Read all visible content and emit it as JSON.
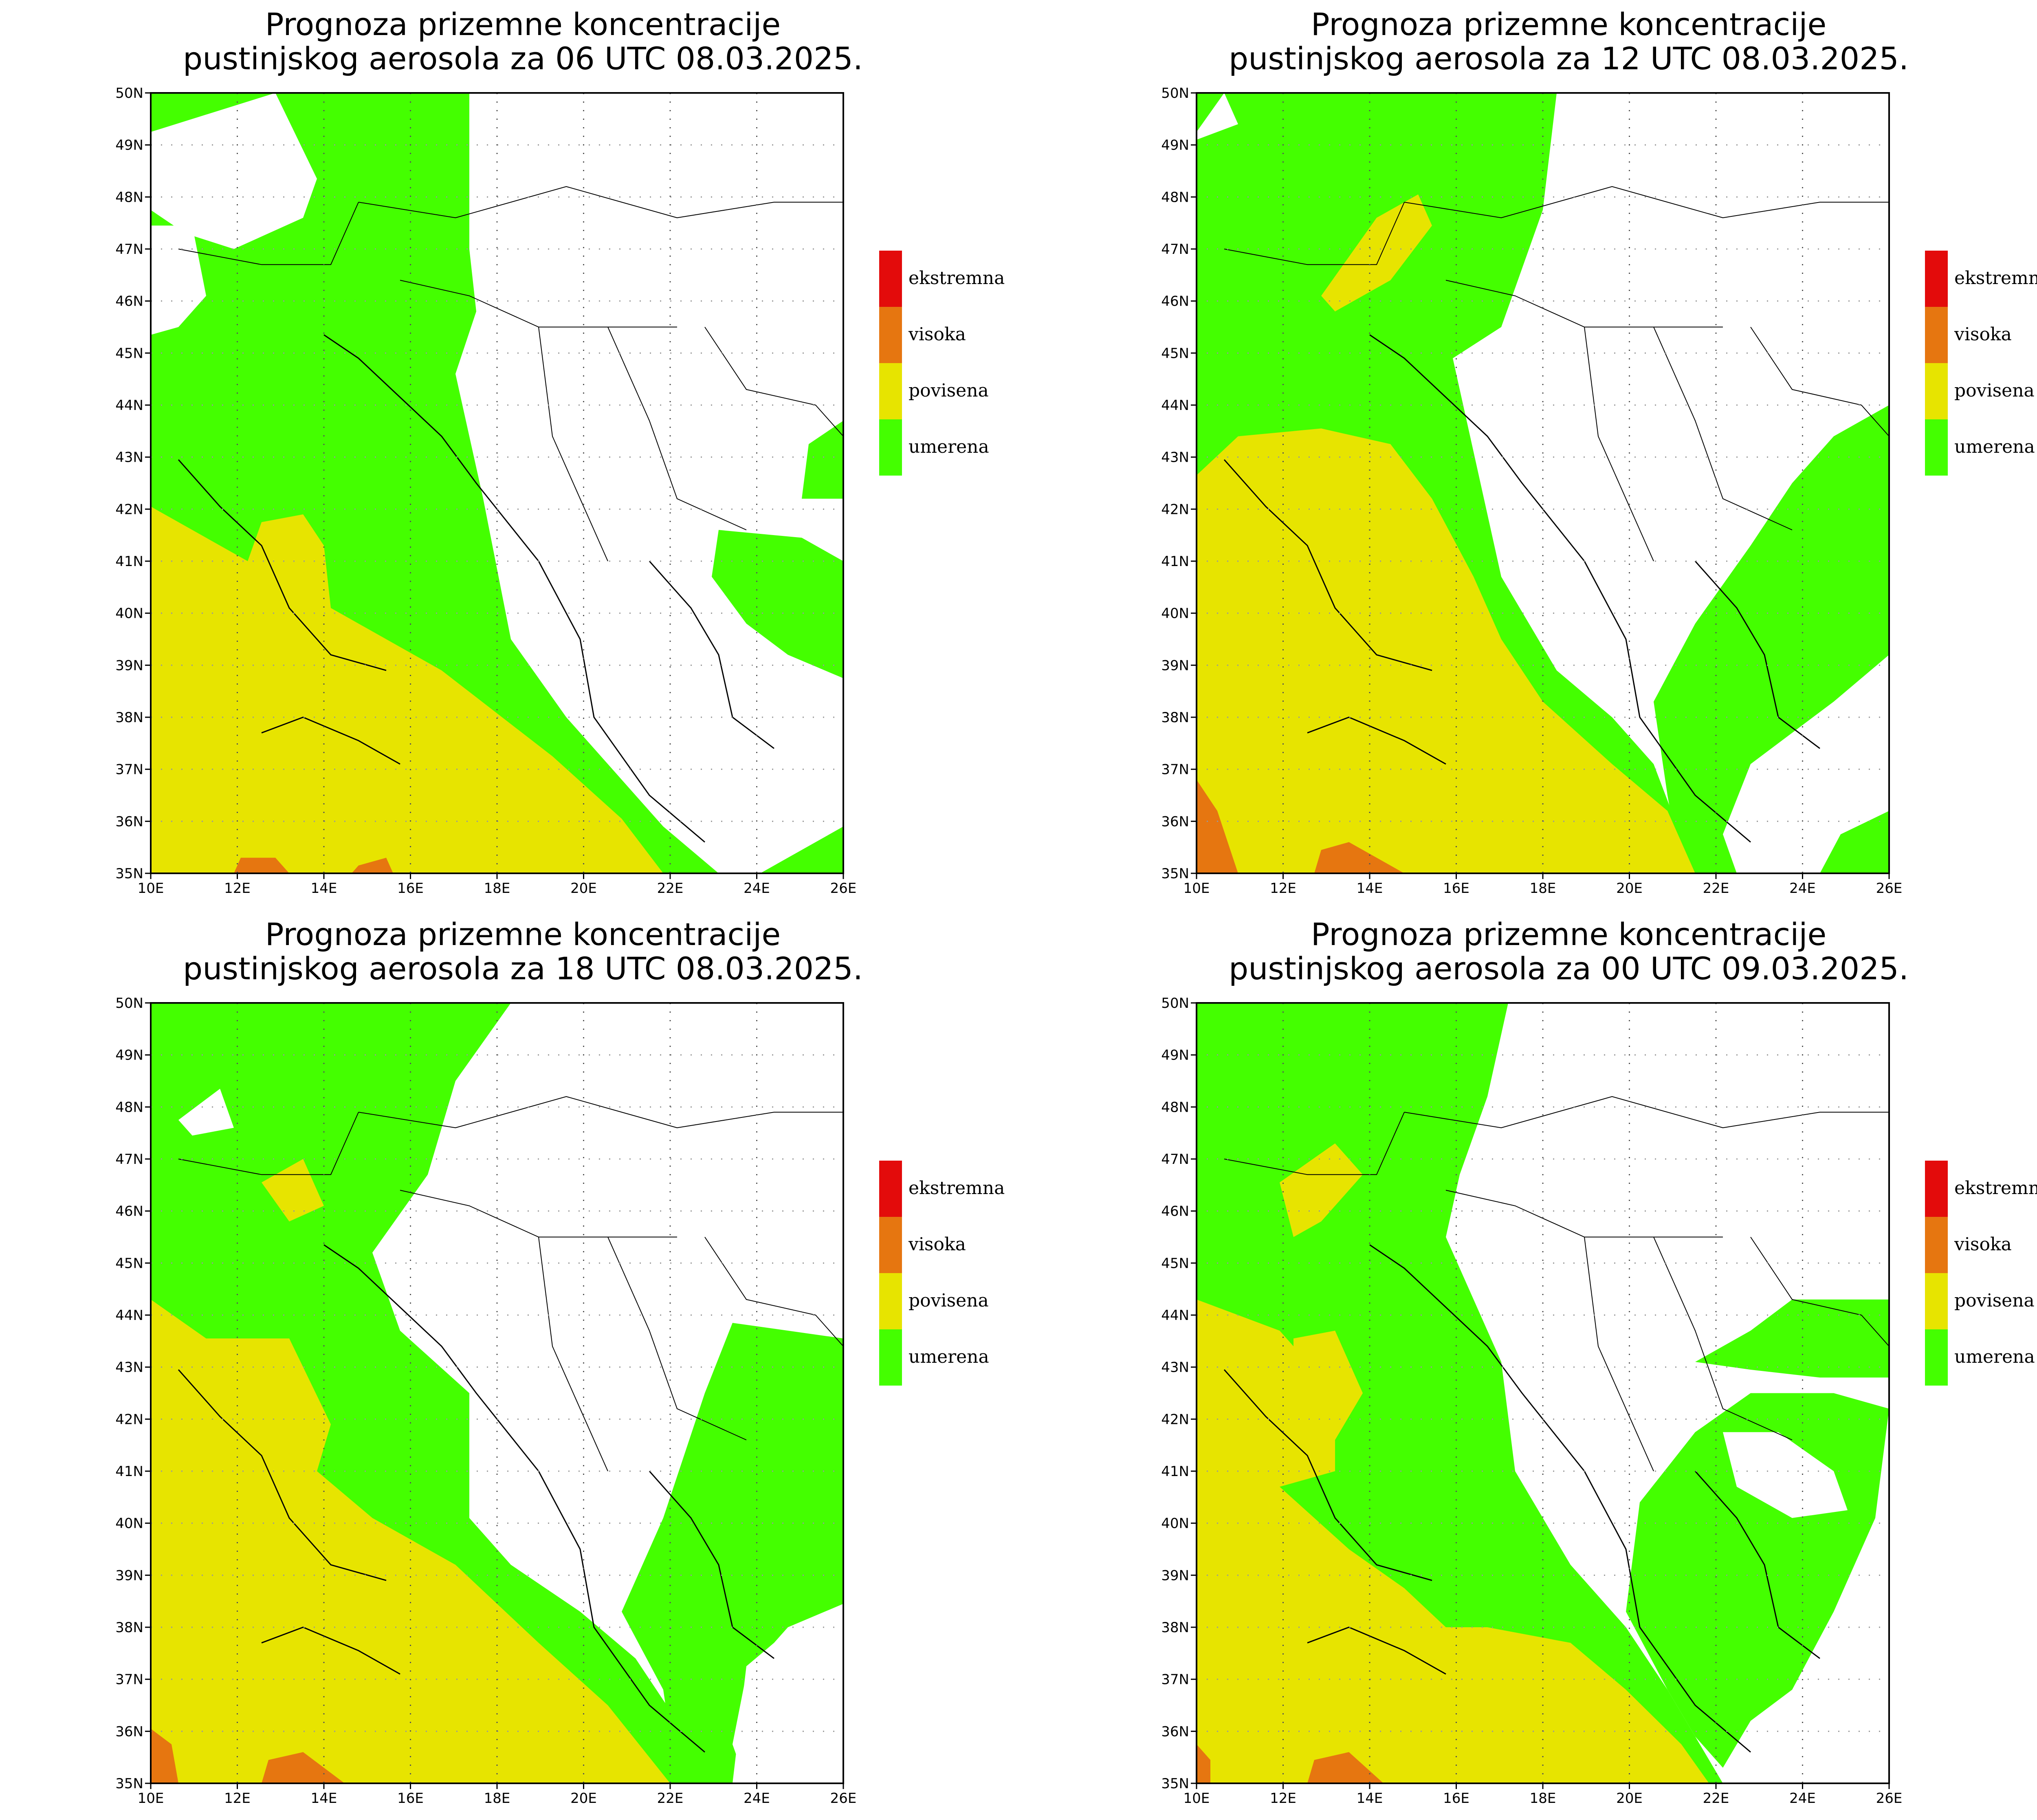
{
  "colors": {
    "umerena": "#44ff00",
    "povisena": "#e7e400",
    "visoka": "#e67610",
    "ekstremna": "#e30b0b",
    "land": "#ffffff",
    "border": "#000000"
  },
  "legend": [
    {
      "label": "ekstremna",
      "color": "#e30b0b"
    },
    {
      "label": "visoka",
      "color": "#e67610"
    },
    {
      "label": "povisena",
      "color": "#e7e400"
    },
    {
      "label": "umerena",
      "color": "#44ff00"
    }
  ],
  "axes": {
    "lat_labels": [
      "50N",
      "49N",
      "48N",
      "47N",
      "46N",
      "45N",
      "44N",
      "43N",
      "42N",
      "41N",
      "40N",
      "39N",
      "38N",
      "37N",
      "36N",
      "35N"
    ],
    "lon_labels": [
      "10E",
      "12E",
      "14E",
      "16E",
      "18E",
      "20E",
      "22E",
      "24E",
      "26E"
    ]
  },
  "panels": [
    {
      "title_line1": "Prognoza prizemne koncentracije",
      "title_line2": "pustinjskog aerosola za 06 UTC 08.03.2025."
    },
    {
      "title_line1": "Prognoza prizemne koncentracije",
      "title_line2": "pustinjskog aerosola za 12 UTC 08.03.2025."
    },
    {
      "title_line1": "Prognoza prizemne koncentracije",
      "title_line2": "pustinjskog aerosola za 18 UTC 08.03.2025."
    },
    {
      "title_line1": "Prognoza prizemne koncentracije",
      "title_line2": "pustinjskog aerosola za 00 UTC 09.03.2025."
    }
  ]
}
